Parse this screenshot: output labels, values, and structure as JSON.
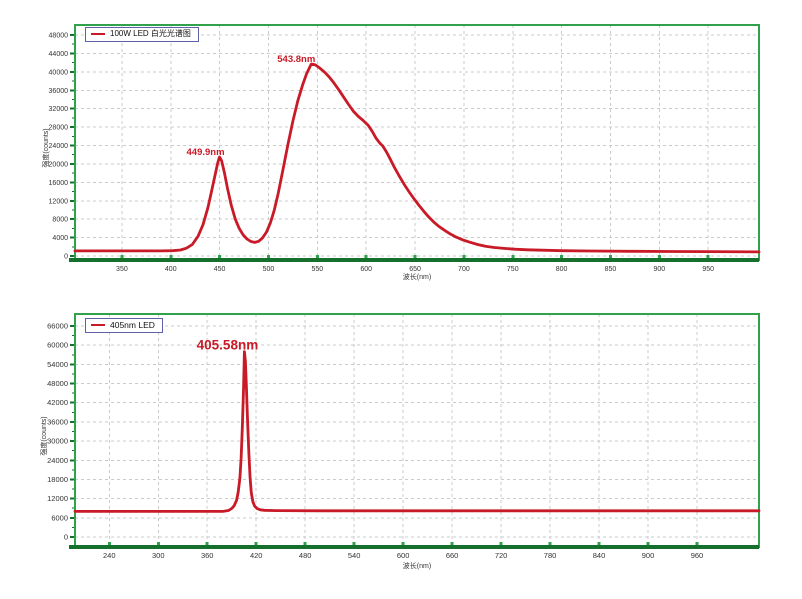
{
  "colors": {
    "curve": "#C81A27",
    "plot_border": "#2FA24B",
    "axis": "#15702E",
    "grid": "#CBCBCB",
    "tick_label": "#333333",
    "legend_border": "#6060A8",
    "annotation": "#C81A27",
    "background": "#FFFFFF"
  },
  "chart_data": [
    {
      "type": "line",
      "legend": "100W LED 白光光谱图",
      "xlabel": "波长(nm)",
      "ylabel": "强度(counts)",
      "xlim": [
        302,
        1002
      ],
      "ylim": [
        0,
        48000
      ],
      "x_ticks": [
        350,
        400,
        450,
        500,
        550,
        600,
        650,
        700,
        750,
        800,
        850,
        900,
        950
      ],
      "y_ticks": [
        0,
        4000,
        8000,
        12000,
        16000,
        20000,
        24000,
        28000,
        32000,
        36000,
        40000,
        44000,
        48000
      ],
      "grid": "dashed",
      "legend_position": "top-left",
      "annotations": [
        {
          "text": "449.9nm",
          "x": 449.9,
          "y": 21500,
          "dx": -14
        },
        {
          "text": "543.8nm",
          "x": 543.8,
          "y": 41700,
          "dx": -15
        }
      ],
      "series": [
        {
          "name": "100W LED 白光光谱图",
          "points": [
            [
              302,
              1100
            ],
            [
              330,
              1100
            ],
            [
              360,
              1100
            ],
            [
              390,
              1100
            ],
            [
              402,
              1150
            ],
            [
              410,
              1300
            ],
            [
              416,
              1700
            ],
            [
              422,
              2500
            ],
            [
              428,
              4300
            ],
            [
              433,
              6800
            ],
            [
              438,
              10500
            ],
            [
              442,
              14300
            ],
            [
              446,
              18200
            ],
            [
              448,
              20200
            ],
            [
              449.9,
              21500
            ],
            [
              452,
              20700
            ],
            [
              455,
              18000
            ],
            [
              458,
              14800
            ],
            [
              462,
              11000
            ],
            [
              466,
              8000
            ],
            [
              470,
              6000
            ],
            [
              474,
              4600
            ],
            [
              478,
              3700
            ],
            [
              482,
              3150
            ],
            [
              486,
              2950
            ],
            [
              490,
              3200
            ],
            [
              494,
              3950
            ],
            [
              498,
              5200
            ],
            [
              502,
              7200
            ],
            [
              506,
              10000
            ],
            [
              510,
              13600
            ],
            [
              515,
              18900
            ],
            [
              520,
              24300
            ],
            [
              525,
              29300
            ],
            [
              530,
              33700
            ],
            [
              535,
              37200
            ],
            [
              539,
              39600
            ],
            [
              543.8,
              41700
            ],
            [
              548,
              41500
            ],
            [
              552,
              40900
            ],
            [
              557,
              40000
            ],
            [
              562,
              38900
            ],
            [
              567,
              37600
            ],
            [
              572,
              36100
            ],
            [
              577,
              34500
            ],
            [
              582,
              32900
            ],
            [
              587,
              31400
            ],
            [
              592,
              30300
            ],
            [
              597,
              29400
            ],
            [
              602,
              28400
            ],
            [
              606,
              27100
            ],
            [
              610,
              25600
            ],
            [
              614,
              24500
            ],
            [
              617,
              23900
            ],
            [
              621,
              22500
            ],
            [
              625,
              20900
            ],
            [
              629,
              19200
            ],
            [
              634,
              17300
            ],
            [
              639,
              15500
            ],
            [
              644,
              13900
            ],
            [
              649,
              12400
            ],
            [
              654,
              11000
            ],
            [
              659,
              9700
            ],
            [
              664,
              8500
            ],
            [
              669,
              7400
            ],
            [
              674,
              6500
            ],
            [
              680,
              5600
            ],
            [
              686,
              4800
            ],
            [
              692,
              4100
            ],
            [
              699,
              3500
            ],
            [
              706,
              3000
            ],
            [
              714,
              2500
            ],
            [
              722,
              2100
            ],
            [
              731,
              1850
            ],
            [
              741,
              1650
            ],
            [
              752,
              1480
            ],
            [
              765,
              1350
            ],
            [
              780,
              1250
            ],
            [
              800,
              1150
            ],
            [
              830,
              1080
            ],
            [
              870,
              1020
            ],
            [
              910,
              980
            ],
            [
              950,
              950
            ],
            [
              1002,
              900
            ]
          ]
        }
      ]
    },
    {
      "type": "line",
      "legend": "405nm LED",
      "xlabel": "波长(nm)",
      "ylabel": "强度(counts)",
      "xlim": [
        198,
        1036
      ],
      "ylim": [
        0,
        66000
      ],
      "x_ticks": [
        240,
        300,
        360,
        420,
        480,
        540,
        600,
        660,
        720,
        780,
        840,
        900,
        960
      ],
      "y_ticks": [
        0,
        6000,
        12000,
        18000,
        24000,
        30000,
        36000,
        42000,
        48000,
        54000,
        60000,
        66000
      ],
      "grid": "dashed",
      "legend_position": "top-left",
      "annotations": [
        {
          "text": "405.58nm",
          "x": 405.58,
          "y": 58000,
          "dx": -17
        }
      ],
      "series": [
        {
          "name": "405nm LED",
          "points": [
            [
              198,
              8000
            ],
            [
              260,
              8000
            ],
            [
              320,
              8000
            ],
            [
              370,
              8000
            ],
            [
              380,
              8050
            ],
            [
              386,
              8300
            ],
            [
              390,
              8900
            ],
            [
              393,
              9800
            ],
            [
              396,
              11500
            ],
            [
              398,
              14000
            ],
            [
              400,
              18500
            ],
            [
              401.5,
              24500
            ],
            [
              403,
              34000
            ],
            [
              404.5,
              47000
            ],
            [
              405.58,
              58000
            ],
            [
              406.8,
              55000
            ],
            [
              408,
              47000
            ],
            [
              409.5,
              36000
            ],
            [
              411,
              26000
            ],
            [
              412.5,
              18500
            ],
            [
              414,
              13800
            ],
            [
              416,
              11000
            ],
            [
              418,
              9700
            ],
            [
              421,
              8900
            ],
            [
              425,
              8500
            ],
            [
              430,
              8350
            ],
            [
              445,
              8250
            ],
            [
              500,
              8200
            ],
            [
              600,
              8200
            ],
            [
              750,
              8200
            ],
            [
              900,
              8200
            ],
            [
              1036,
              8200
            ]
          ]
        }
      ]
    }
  ]
}
